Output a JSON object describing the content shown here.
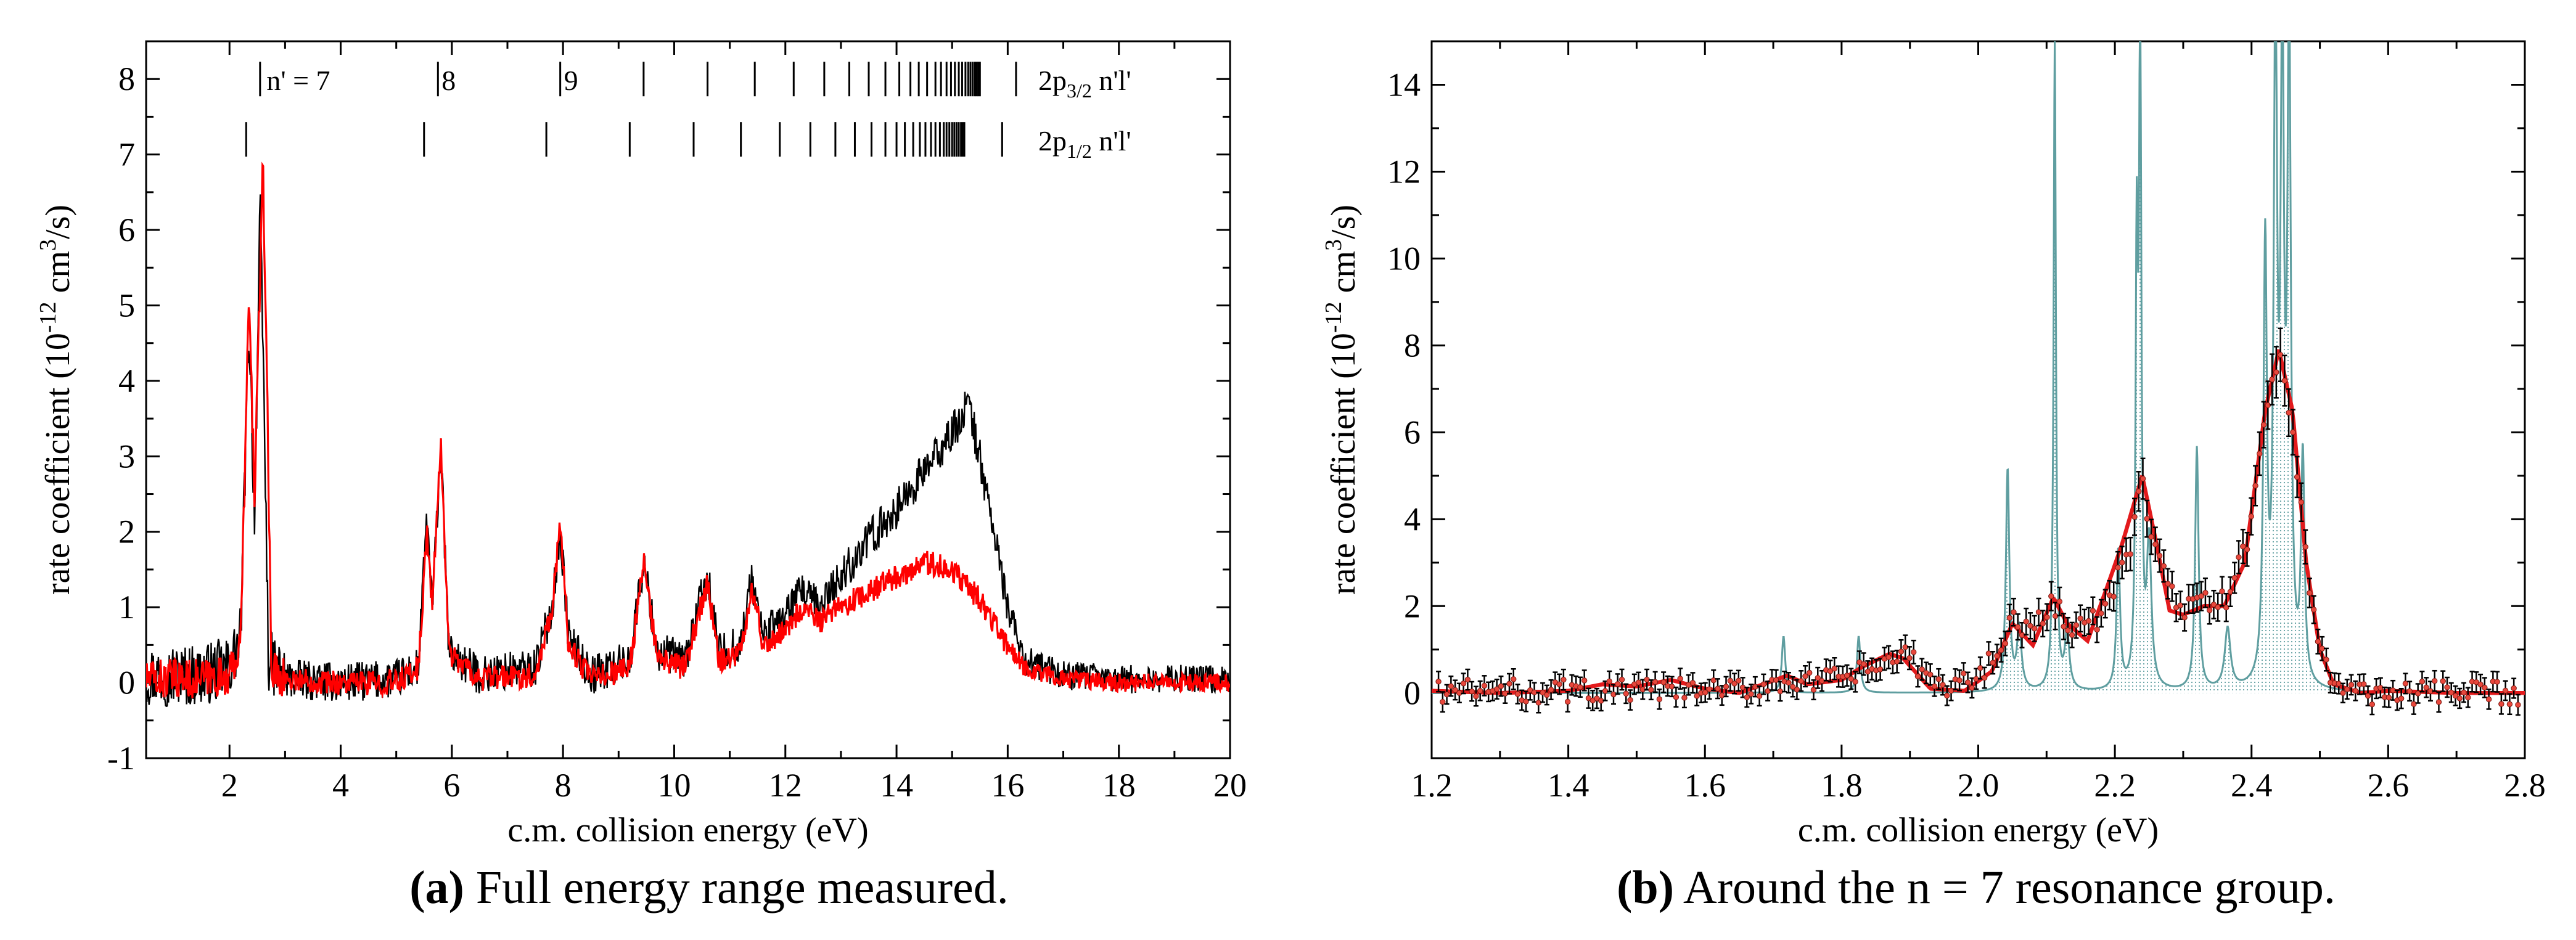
{
  "figure": {
    "caption_a_label": "(a)",
    "caption_a_text": "Full energy range measured.",
    "caption_b_label": "(b)",
    "caption_b_text": "Around the n = 7 resonance group."
  },
  "colors": {
    "experiment_black": "#000000",
    "model_red": "#ff0000",
    "theory_teal": "#5f9ea0",
    "fit_red": "#e31a1c",
    "marker_red": "#e8473c"
  },
  "chart_data": [
    {
      "id": "a",
      "type": "line",
      "title": "",
      "xlabel": "c.m. collision energy (eV)",
      "ylabel_parts": [
        "rate coefficient (10",
        "-12",
        " cm",
        "3",
        "/s)"
      ],
      "xlim": [
        0.5,
        20
      ],
      "ylim": [
        -1,
        8.5
      ],
      "xticks": [
        2,
        4,
        6,
        8,
        10,
        12,
        14,
        16,
        18,
        20
      ],
      "yticks": [
        -1,
        0,
        1,
        2,
        3,
        4,
        5,
        6,
        7,
        8
      ],
      "grid": false,
      "series": [
        {
          "color": "#000000",
          "points": [
            [
              0.5,
              0.1
            ],
            [
              1.0,
              0.1
            ],
            [
              1.5,
              0.1
            ],
            [
              2.0,
              0.2
            ],
            [
              2.2,
              0.6
            ],
            [
              2.35,
              4.8
            ],
            [
              2.45,
              2.2
            ],
            [
              2.55,
              6.2
            ],
            [
              2.62,
              3.8
            ],
            [
              2.7,
              0.3
            ],
            [
              3.0,
              0.05
            ],
            [
              4.0,
              0.0
            ],
            [
              5.0,
              0.05
            ],
            [
              5.4,
              0.2
            ],
            [
              5.55,
              2.2
            ],
            [
              5.65,
              1.0
            ],
            [
              5.8,
              3.1
            ],
            [
              5.95,
              0.4
            ],
            [
              6.5,
              0.1
            ],
            [
              7.5,
              0.2
            ],
            [
              7.8,
              1.0
            ],
            [
              7.95,
              2.0
            ],
            [
              8.1,
              0.6
            ],
            [
              8.5,
              0.1
            ],
            [
              9.2,
              0.3
            ],
            [
              9.45,
              1.6
            ],
            [
              9.7,
              0.4
            ],
            [
              10.2,
              0.3
            ],
            [
              10.4,
              0.9
            ],
            [
              10.6,
              1.4
            ],
            [
              10.8,
              0.4
            ],
            [
              11.2,
              0.5
            ],
            [
              11.4,
              1.4
            ],
            [
              11.6,
              0.6
            ],
            [
              12.0,
              0.9
            ],
            [
              12.3,
              1.2
            ],
            [
              12.6,
              1.0
            ],
            [
              13.0,
              1.4
            ],
            [
              13.5,
              1.9
            ],
            [
              14.0,
              2.3
            ],
            [
              14.5,
              2.8
            ],
            [
              15.0,
              3.3
            ],
            [
              15.3,
              3.7
            ],
            [
              15.6,
              2.6
            ],
            [
              16.0,
              1.0
            ],
            [
              16.3,
              0.3
            ],
            [
              17.0,
              0.1
            ],
            [
              18.0,
              0.05
            ],
            [
              19.0,
              0.05
            ],
            [
              20.0,
              0.05
            ]
          ]
        },
        {
          "color": "#ff0000",
          "points": [
            [
              0.5,
              0.05
            ],
            [
              1.0,
              0.05
            ],
            [
              1.5,
              0.05
            ],
            [
              2.0,
              0.1
            ],
            [
              2.2,
              0.5
            ],
            [
              2.35,
              5.1
            ],
            [
              2.45,
              2.5
            ],
            [
              2.6,
              6.8
            ],
            [
              2.68,
              3.9
            ],
            [
              2.75,
              0.2
            ],
            [
              3.0,
              0.05
            ],
            [
              4.0,
              0.0
            ],
            [
              5.0,
              0.0
            ],
            [
              5.4,
              0.2
            ],
            [
              5.55,
              2.0
            ],
            [
              5.65,
              1.0
            ],
            [
              5.8,
              3.2
            ],
            [
              5.95,
              0.4
            ],
            [
              6.5,
              0.05
            ],
            [
              7.5,
              0.1
            ],
            [
              7.8,
              1.0
            ],
            [
              7.95,
              2.1
            ],
            [
              8.1,
              0.5
            ],
            [
              8.5,
              0.05
            ],
            [
              9.2,
              0.2
            ],
            [
              9.45,
              1.6
            ],
            [
              9.7,
              0.3
            ],
            [
              10.2,
              0.2
            ],
            [
              10.4,
              0.8
            ],
            [
              10.6,
              1.3
            ],
            [
              10.8,
              0.3
            ],
            [
              11.2,
              0.4
            ],
            [
              11.4,
              1.3
            ],
            [
              11.6,
              0.5
            ],
            [
              12.0,
              0.7
            ],
            [
              12.3,
              1.0
            ],
            [
              12.6,
              0.8
            ],
            [
              13.0,
              1.0
            ],
            [
              13.5,
              1.2
            ],
            [
              14.0,
              1.4
            ],
            [
              14.5,
              1.6
            ],
            [
              15.0,
              1.5
            ],
            [
              15.5,
              1.1
            ],
            [
              16.0,
              0.5
            ],
            [
              16.3,
              0.2
            ],
            [
              17.0,
              0.05
            ],
            [
              18.0,
              0.0
            ],
            [
              19.0,
              0.0
            ],
            [
              20.0,
              0.0
            ]
          ]
        }
      ],
      "series_noise": [
        0.35,
        0.22
      ],
      "limits_3_2": [
        2.55,
        5.75,
        7.95,
        9.45,
        10.6,
        11.45,
        12.15,
        12.7,
        13.15,
        13.5,
        13.8,
        14.05,
        14.25,
        14.4,
        14.55,
        14.7,
        14.8,
        14.9,
        14.98,
        15.05,
        15.12,
        15.18,
        15.24,
        15.29,
        15.33,
        15.37,
        15.41,
        15.44,
        15.47,
        15.5,
        16.15
      ],
      "limits_1_2": [
        2.3,
        5.5,
        7.7,
        9.2,
        10.35,
        11.2,
        11.9,
        12.45,
        12.9,
        13.25,
        13.55,
        13.8,
        14.0,
        14.15,
        14.3,
        14.42,
        14.52,
        14.62,
        14.7,
        14.78,
        14.85,
        14.9,
        14.95,
        15.0,
        15.04,
        15.08,
        15.12,
        15.16,
        15.19,
        15.22,
        15.9
      ],
      "annotations": {
        "n7": "n' = 7",
        "n8": "8",
        "n9": "9",
        "row1_main": "2p",
        "row1_sub": "3/2",
        "row1_suffix": " n'l'",
        "row2_main": "2p",
        "row2_sub": "1/2",
        "row2_suffix": " n'l'"
      }
    },
    {
      "id": "b",
      "type": "line",
      "title": "",
      "xlabel": "c.m. collision energy (eV)",
      "ylabel_parts": [
        "rate coefficient (10",
        "-12",
        " cm",
        "3",
        "/s)"
      ],
      "xlim": [
        1.2,
        2.8
      ],
      "ylim": [
        -1.5,
        15
      ],
      "xticks": [
        1.2,
        1.4,
        1.6,
        1.8,
        2.0,
        2.2,
        2.4,
        2.6,
        2.8
      ],
      "yticks": [
        0,
        2,
        4,
        6,
        8,
        10,
        12,
        14
      ],
      "grid": false,
      "theory_peaks": [
        {
          "x": 1.715,
          "h": 1.3,
          "w": 0.003
        },
        {
          "x": 1.825,
          "h": 1.3,
          "w": 0.003
        },
        {
          "x": 2.043,
          "h": 5.1,
          "w": 0.003
        },
        {
          "x": 2.06,
          "h": 1.4,
          "w": 0.004
        },
        {
          "x": 2.112,
          "h": 15.0,
          "w": 0.002
        },
        {
          "x": 2.13,
          "h": 1.3,
          "w": 0.004
        },
        {
          "x": 2.205,
          "h": 3.2,
          "w": 0.003
        },
        {
          "x": 2.232,
          "h": 9.6,
          "w": 0.002
        },
        {
          "x": 2.237,
          "h": 15.0,
          "w": 0.002
        },
        {
          "x": 2.25,
          "h": 3.3,
          "w": 0.004
        },
        {
          "x": 2.32,
          "h": 5.6,
          "w": 0.003
        },
        {
          "x": 2.365,
          "h": 1.4,
          "w": 0.005
        },
        {
          "x": 2.42,
          "h": 10.0,
          "w": 0.003
        },
        {
          "x": 2.435,
          "h": 15.0,
          "w": 0.003
        },
        {
          "x": 2.445,
          "h": 14.0,
          "w": 0.003
        },
        {
          "x": 2.455,
          "h": 15.0,
          "w": 0.003
        },
        {
          "x": 2.475,
          "h": 5.2,
          "w": 0.003
        }
      ],
      "fit_curve": [
        [
          1.2,
          0.05
        ],
        [
          1.3,
          0.0
        ],
        [
          1.4,
          0.05
        ],
        [
          1.45,
          0.2
        ],
        [
          1.5,
          0.15
        ],
        [
          1.55,
          0.3
        ],
        [
          1.6,
          0.1
        ],
        [
          1.65,
          0.0
        ],
        [
          1.72,
          0.4
        ],
        [
          1.75,
          0.2
        ],
        [
          1.8,
          0.3
        ],
        [
          1.83,
          0.6
        ],
        [
          1.87,
          0.9
        ],
        [
          1.89,
          0.8
        ],
        [
          1.93,
          0.1
        ],
        [
          1.98,
          0.05
        ],
        [
          2.02,
          0.5
        ],
        [
          2.05,
          1.6
        ],
        [
          2.08,
          1.1
        ],
        [
          2.11,
          2.2
        ],
        [
          2.13,
          1.6
        ],
        [
          2.16,
          1.2
        ],
        [
          2.19,
          2.5
        ],
        [
          2.21,
          3.4
        ],
        [
          2.24,
          5.0
        ],
        [
          2.26,
          3.5
        ],
        [
          2.28,
          1.9
        ],
        [
          2.3,
          1.8
        ],
        [
          2.33,
          2.0
        ],
        [
          2.36,
          2.0
        ],
        [
          2.39,
          3.0
        ],
        [
          2.42,
          6.5
        ],
        [
          2.44,
          7.9
        ],
        [
          2.46,
          6.5
        ],
        [
          2.48,
          3.0
        ],
        [
          2.5,
          1.0
        ],
        [
          2.52,
          0.2
        ],
        [
          2.56,
          0.0
        ],
        [
          2.6,
          0.05
        ],
        [
          2.7,
          0.0
        ],
        [
          2.8,
          0.0
        ]
      ],
      "measured_baseline": [
        [
          1.2,
          0.05
        ],
        [
          1.65,
          0.05
        ],
        [
          1.72,
          0.3
        ],
        [
          1.76,
          0.2
        ],
        [
          1.84,
          0.5
        ],
        [
          1.89,
          0.9
        ],
        [
          1.94,
          0.15
        ],
        [
          2.0,
          0.3
        ],
        [
          2.05,
          1.7
        ],
        [
          2.08,
          1.4
        ],
        [
          2.11,
          2.1
        ],
        [
          2.14,
          1.5
        ],
        [
          2.18,
          1.7
        ],
        [
          2.22,
          3.2
        ],
        [
          2.24,
          4.8
        ],
        [
          2.26,
          3.3
        ],
        [
          2.29,
          2.0
        ],
        [
          2.32,
          2.0
        ],
        [
          2.36,
          2.1
        ],
        [
          2.39,
          3.2
        ],
        [
          2.42,
          6.4
        ],
        [
          2.44,
          7.7
        ],
        [
          2.46,
          6.2
        ],
        [
          2.48,
          3.1
        ],
        [
          2.5,
          1.0
        ],
        [
          2.52,
          0.2
        ],
        [
          2.56,
          0.0
        ],
        [
          2.8,
          0.0
        ]
      ],
      "measured_noise": 0.28,
      "measured_points": 260
    }
  ]
}
